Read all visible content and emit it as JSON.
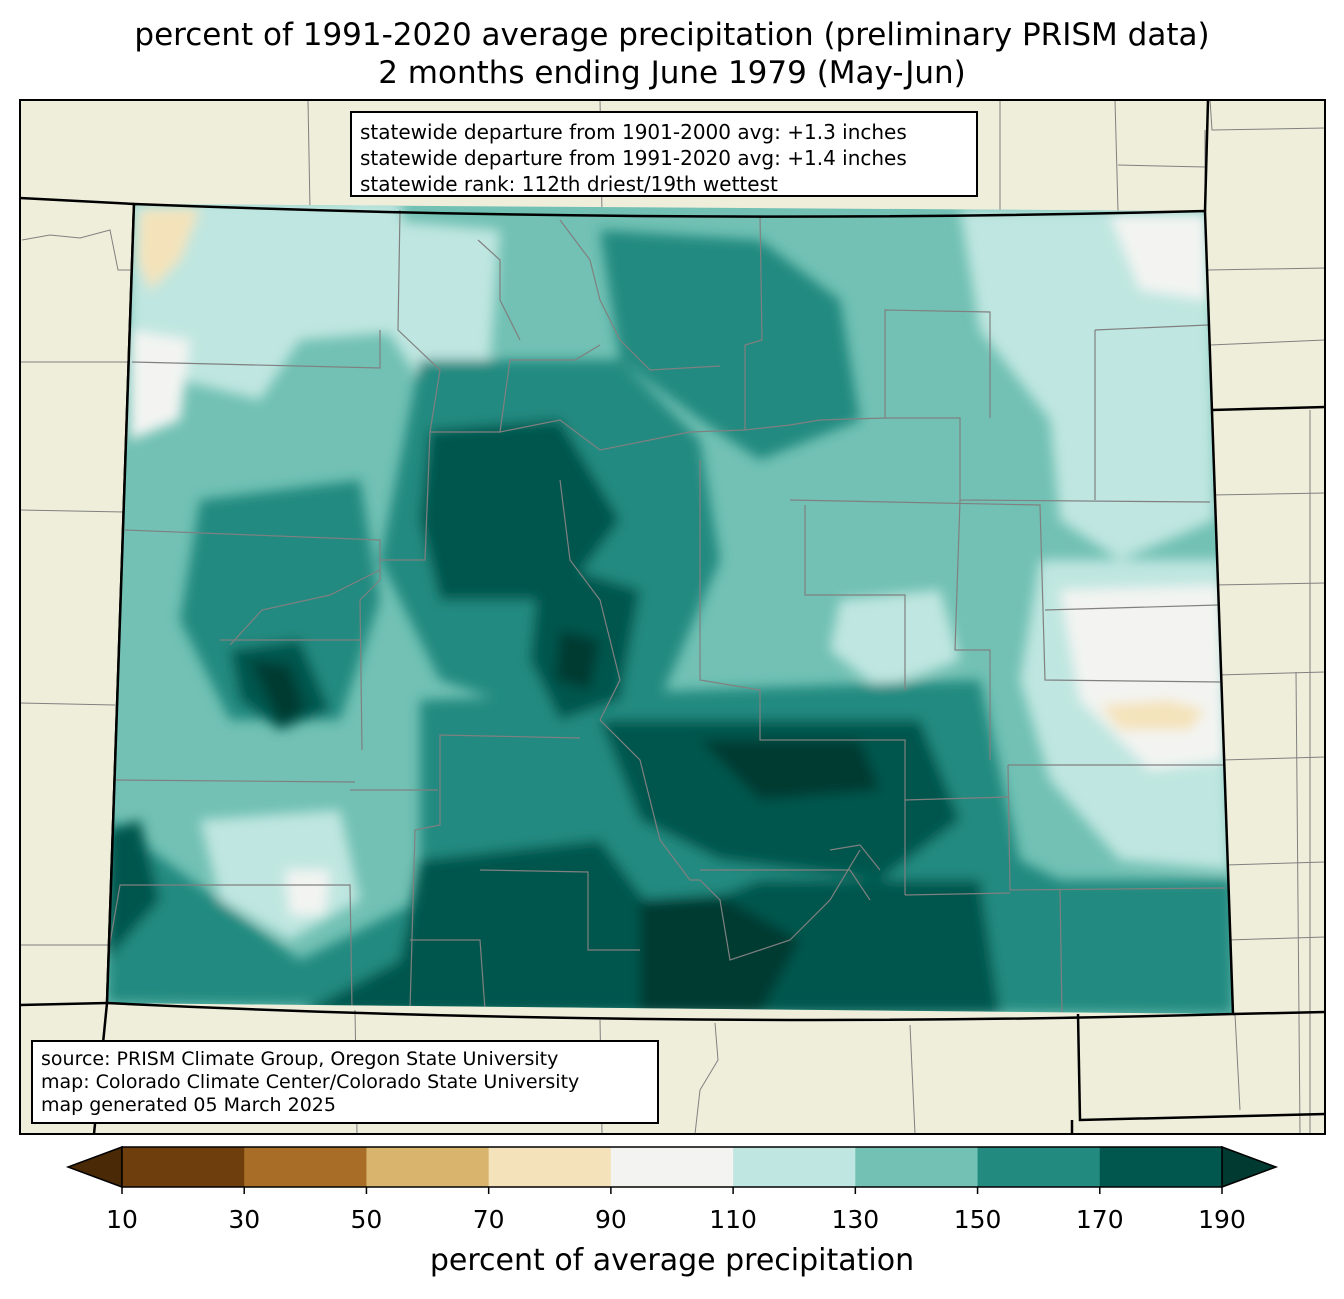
{
  "title": {
    "line1": "percent of 1991-2020 average precipitation (preliminary PRISM data)",
    "line2": "2 months ending June 1979 (May-Jun)"
  },
  "stats": {
    "line1": "statewide departure from 1901-2000 avg: +1.3 inches",
    "line2": "statewide departure from 1991-2020 avg: +1.4 inches",
    "line3": "statewide rank: 112th driest/19th wettest"
  },
  "source": {
    "line1": "source: PRISM Climate Group, Oregon State University",
    "line2": "map: Colorado Climate Center/Colorado State University",
    "line3": "map generated 05 March 2025"
  },
  "colorbar": {
    "label": "percent of average precipitation",
    "ticks": [
      "10",
      "30",
      "50",
      "70",
      "90",
      "110",
      "130",
      "150",
      "170",
      "190"
    ],
    "colors": [
      "#6e3f0c",
      "#a86d26",
      "#d9b46c",
      "#f4e3ba",
      "#f3f4f2",
      "#bfe6e0",
      "#72c1b4",
      "#238a80",
      "#01574d"
    ],
    "under_color": "#4a2a06",
    "over_color": "#013a31"
  },
  "map_colors": {
    "background_land": "#efeedb",
    "state_border": "#000000",
    "county_border": "#808080"
  }
}
